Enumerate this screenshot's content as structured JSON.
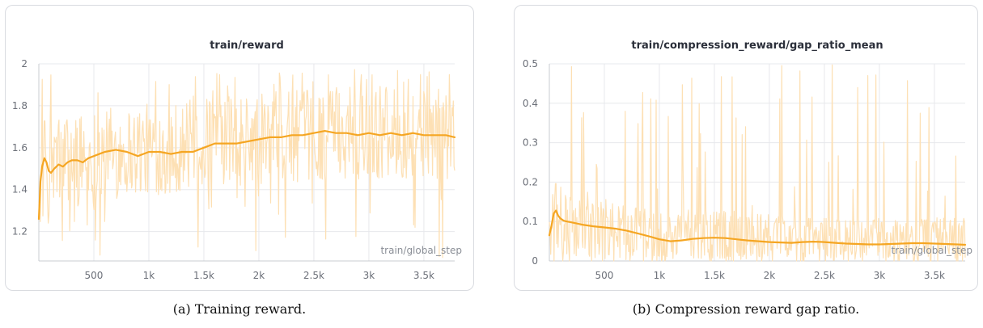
{
  "colors": {
    "raw": "#fde0b4",
    "smooth": "#f5a623",
    "grid": "#e7e8ec",
    "axis": "#c9ccd2"
  },
  "captions": {
    "a": "(a) Training reward.",
    "b": "(b) Compression reward gap ratio."
  },
  "chart_data": [
    {
      "type": "line",
      "title": "train/reward",
      "xlabel": "train/global_step",
      "ylabel": "",
      "xlim": [
        0,
        3780
      ],
      "ylim": [
        1.06,
        2.0
      ],
      "xticks": [
        500,
        1000,
        1500,
        2000,
        2500,
        3000,
        3500
      ],
      "xtick_labels": [
        "500",
        "1k",
        "1.5k",
        "2k",
        "2.5k",
        "3k",
        "3.5k"
      ],
      "yticks": [
        1.2,
        1.4,
        1.6,
        1.8,
        2.0
      ],
      "ytick_labels": [
        "1.2",
        "1.4",
        "1.6",
        "1.8",
        "2"
      ],
      "grid": true,
      "series": [
        {
          "role": "smoothed",
          "x": [
            0,
            15,
            30,
            50,
            70,
            90,
            110,
            140,
            180,
            220,
            260,
            300,
            350,
            400,
            450,
            500,
            600,
            700,
            800,
            900,
            1000,
            1100,
            1200,
            1300,
            1400,
            1500,
            1600,
            1700,
            1800,
            1900,
            2000,
            2100,
            2200,
            2300,
            2400,
            2500,
            2600,
            2700,
            2800,
            2900,
            3000,
            3100,
            3200,
            3300,
            3400,
            3500,
            3600,
            3700,
            3780
          ],
          "y": [
            1.26,
            1.44,
            1.51,
            1.55,
            1.53,
            1.49,
            1.48,
            1.5,
            1.52,
            1.51,
            1.53,
            1.54,
            1.54,
            1.53,
            1.55,
            1.56,
            1.58,
            1.59,
            1.58,
            1.56,
            1.58,
            1.58,
            1.57,
            1.58,
            1.58,
            1.6,
            1.62,
            1.62,
            1.62,
            1.63,
            1.64,
            1.65,
            1.65,
            1.66,
            1.66,
            1.67,
            1.68,
            1.67,
            1.67,
            1.66,
            1.67,
            1.66,
            1.67,
            1.66,
            1.67,
            1.66,
            1.66,
            1.66,
            1.65
          ]
        }
      ],
      "raw_band": {
        "x": [
          0,
          25,
          50,
          100,
          150,
          200,
          300,
          400,
          500,
          600,
          800,
          1000,
          1200,
          1500,
          1800,
          2000,
          2200,
          2500,
          2800,
          3000,
          3200,
          3500,
          3780
        ],
        "low": [
          1.2,
          1.23,
          1.25,
          1.28,
          1.29,
          1.3,
          1.31,
          1.33,
          1.34,
          1.35,
          1.36,
          1.37,
          1.38,
          1.4,
          1.41,
          1.42,
          1.43,
          1.44,
          1.45,
          1.45,
          1.45,
          1.45,
          1.45
        ],
        "high": [
          1.32,
          1.7,
          1.75,
          1.76,
          1.76,
          1.77,
          1.77,
          1.78,
          1.79,
          1.8,
          1.81,
          1.81,
          1.82,
          1.84,
          1.85,
          1.86,
          1.87,
          1.88,
          1.88,
          1.88,
          1.88,
          1.88,
          1.88
        ],
        "max": 2.0,
        "min": 1.06,
        "samples": 620
      }
    },
    {
      "type": "line",
      "title": "train/compression_reward/gap_ratio_mean",
      "xlabel": "train/global_step",
      "ylabel": "",
      "xlim": [
        0,
        3780
      ],
      "ylim": [
        0,
        0.5
      ],
      "xticks": [
        500,
        1000,
        1500,
        2000,
        2500,
        3000,
        3500
      ],
      "xtick_labels": [
        "500",
        "1k",
        "1.5k",
        "2k",
        "2.5k",
        "3k",
        "3.5k"
      ],
      "yticks": [
        0,
        0.1,
        0.2,
        0.3,
        0.4,
        0.5
      ],
      "ytick_labels": [
        "0",
        "0.1",
        "0.2",
        "0.3",
        "0.4",
        "0.5"
      ],
      "grid": true,
      "series": [
        {
          "role": "smoothed",
          "x": [
            0,
            20,
            40,
            60,
            80,
            100,
            130,
            160,
            200,
            300,
            400,
            500,
            600,
            700,
            800,
            900,
            1000,
            1100,
            1200,
            1300,
            1400,
            1500,
            1600,
            1700,
            1800,
            1900,
            2000,
            2100,
            2200,
            2300,
            2400,
            2500,
            2600,
            2700,
            2800,
            2900,
            3000,
            3100,
            3200,
            3300,
            3400,
            3500,
            3600,
            3700,
            3780
          ],
          "y": [
            0.065,
            0.09,
            0.12,
            0.128,
            0.115,
            0.108,
            0.102,
            0.1,
            0.098,
            0.092,
            0.088,
            0.085,
            0.082,
            0.077,
            0.07,
            0.063,
            0.055,
            0.05,
            0.052,
            0.056,
            0.058,
            0.059,
            0.058,
            0.055,
            0.052,
            0.05,
            0.048,
            0.047,
            0.046,
            0.048,
            0.049,
            0.048,
            0.046,
            0.044,
            0.043,
            0.042,
            0.042,
            0.043,
            0.044,
            0.045,
            0.045,
            0.044,
            0.043,
            0.042,
            0.041
          ]
        }
      ],
      "raw_band": {
        "x": [
          0,
          100,
          300,
          500,
          1000,
          1500,
          2000,
          2500,
          3000,
          3500,
          3780
        ],
        "low": [
          0,
          0,
          0,
          0,
          0,
          0,
          0,
          0,
          0,
          0,
          0
        ],
        "high": [
          0.2,
          0.2,
          0.18,
          0.16,
          0.13,
          0.13,
          0.12,
          0.11,
          0.11,
          0.11,
          0.11
        ],
        "max": 0.5,
        "min": 0,
        "samples": 620
      }
    }
  ]
}
